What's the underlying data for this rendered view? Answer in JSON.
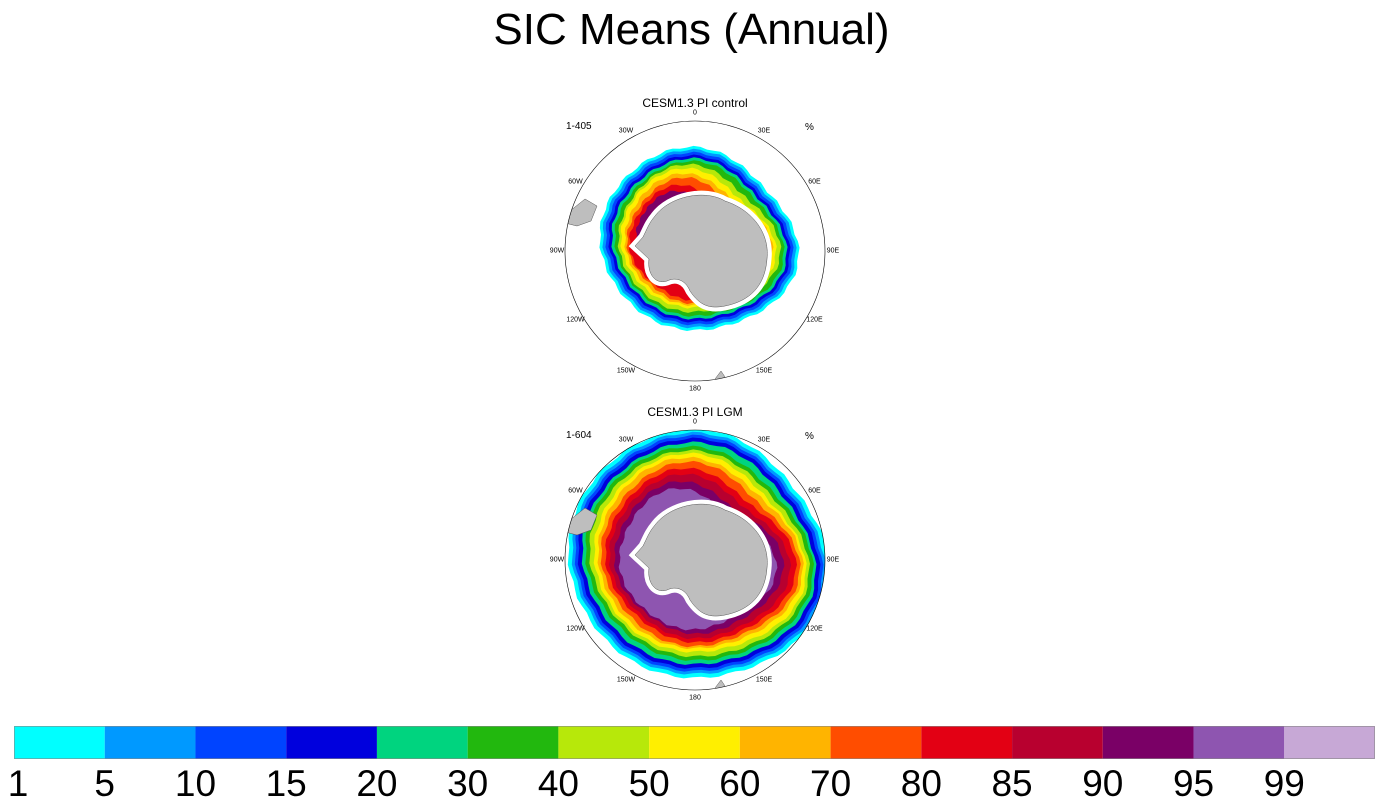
{
  "title": "SIC Means (Annual)",
  "panels": [
    {
      "title": "CESM1.3 PI control",
      "range": "1-405",
      "units": "%",
      "lon_labels": [
        "0",
        "30E",
        "60E",
        "90E",
        "120E",
        "150E",
        "180",
        "150W",
        "120W",
        "90W",
        "60W",
        "30W"
      ],
      "ice_edge_extent": "narrow"
    },
    {
      "title": "CESM1.3 PI LGM",
      "range": "1-604",
      "units": "%",
      "lon_labels": [
        "0",
        "30E",
        "60E",
        "90E",
        "120E",
        "150E",
        "180",
        "150W",
        "120W",
        "90W",
        "60W",
        "30W"
      ],
      "ice_edge_extent": "wide"
    }
  ],
  "chart_data": {
    "type": "heatmap",
    "title": "SIC Means (Annual)",
    "colorbar": {
      "levels": [
        "1",
        "5",
        "10",
        "15",
        "20",
        "30",
        "40",
        "50",
        "60",
        "70",
        "80",
        "85",
        "90",
        "95",
        "99"
      ],
      "colors": [
        "#00ffff",
        "#0099ff",
        "#0044ff",
        "#0000dd",
        "#00d47f",
        "#22b80e",
        "#b7e80a",
        "#ffef00",
        "#ffb400",
        "#ff4d00",
        "#e30014",
        "#b8002f",
        "#7a0066",
        "#8e55b0",
        "#c7a8d6"
      ]
    },
    "land_color": "#bebebe"
  }
}
